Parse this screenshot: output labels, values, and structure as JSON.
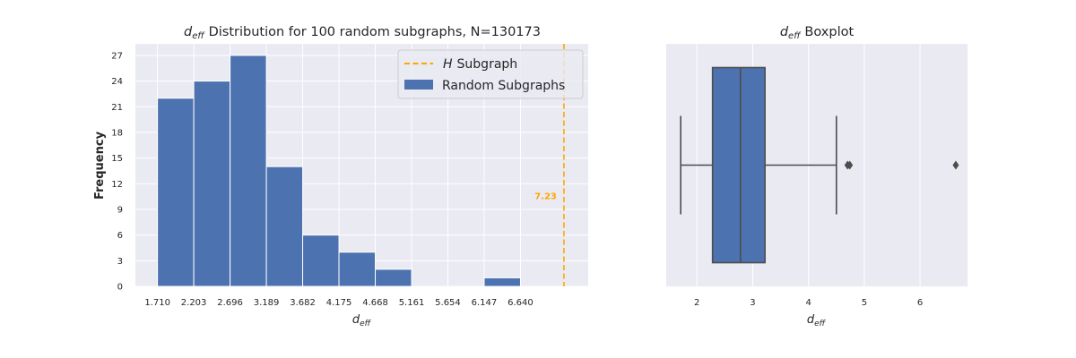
{
  "chart_data": [
    {
      "type": "bar",
      "chart_kind": "histogram",
      "title": "Distribution for 100 random subgraphs, N=130173",
      "title_symbol": {
        "base": "d",
        "sub": "eff"
      },
      "xlabel": {
        "base": "d",
        "sub": "eff"
      },
      "ylabel": "Frequency",
      "xlim": [
        1.41,
        7.56
      ],
      "ylim": [
        0,
        28.35
      ],
      "xticks": [
        1.71,
        2.203,
        2.696,
        3.189,
        3.682,
        4.175,
        4.668,
        5.161,
        5.654,
        6.147,
        6.64
      ],
      "xtick_labels": [
        "1.710",
        "2.203",
        "2.696",
        "3.189",
        "3.682",
        "4.175",
        "4.668",
        "5.161",
        "5.654",
        "6.147",
        "6.640"
      ],
      "yticks": [
        0,
        3,
        6,
        9,
        12,
        15,
        18,
        21,
        24,
        27
      ],
      "ytick_labels": [
        "0",
        "3",
        "6",
        "9",
        "12",
        "15",
        "18",
        "21",
        "24",
        "27"
      ],
      "bin_edges": [
        1.71,
        2.203,
        2.696,
        3.189,
        3.682,
        4.175,
        4.668,
        5.161,
        5.654,
        6.147,
        6.64
      ],
      "counts": [
        22,
        24,
        27,
        14,
        6,
        4,
        2,
        0,
        0,
        1
      ],
      "bar_color": "#4c72b0",
      "reference_line": {
        "x": 7.23,
        "label": "7.23",
        "color": "#ffa500",
        "style": "dashed"
      },
      "legend": {
        "placement": "top-right",
        "entries": [
          {
            "symbol": "H",
            "label": "Subgraph",
            "kind": "line",
            "color": "#ffa500"
          },
          {
            "label": "Random Subgraphs",
            "kind": "patch",
            "color": "#4c72b0"
          }
        ]
      },
      "grid": true,
      "background": "#eaeaf2"
    },
    {
      "type": "boxplot",
      "title": "Boxplot",
      "title_symbol": {
        "base": "d",
        "sub": "eff"
      },
      "xlabel": {
        "base": "d",
        "sub": "eff"
      },
      "xlim": [
        1.45,
        6.85
      ],
      "xticks": [
        2,
        3,
        4,
        5,
        6
      ],
      "xtick_labels": [
        "2",
        "3",
        "4",
        "5",
        "6"
      ],
      "whisker_low": 1.71,
      "q1": 2.28,
      "median": 2.78,
      "q3": 3.22,
      "whisker_high": 4.5,
      "outliers": [
        4.7,
        4.74,
        6.64
      ],
      "box_color": "#4c72b0",
      "grid": true,
      "background": "#eaeaf2"
    }
  ]
}
